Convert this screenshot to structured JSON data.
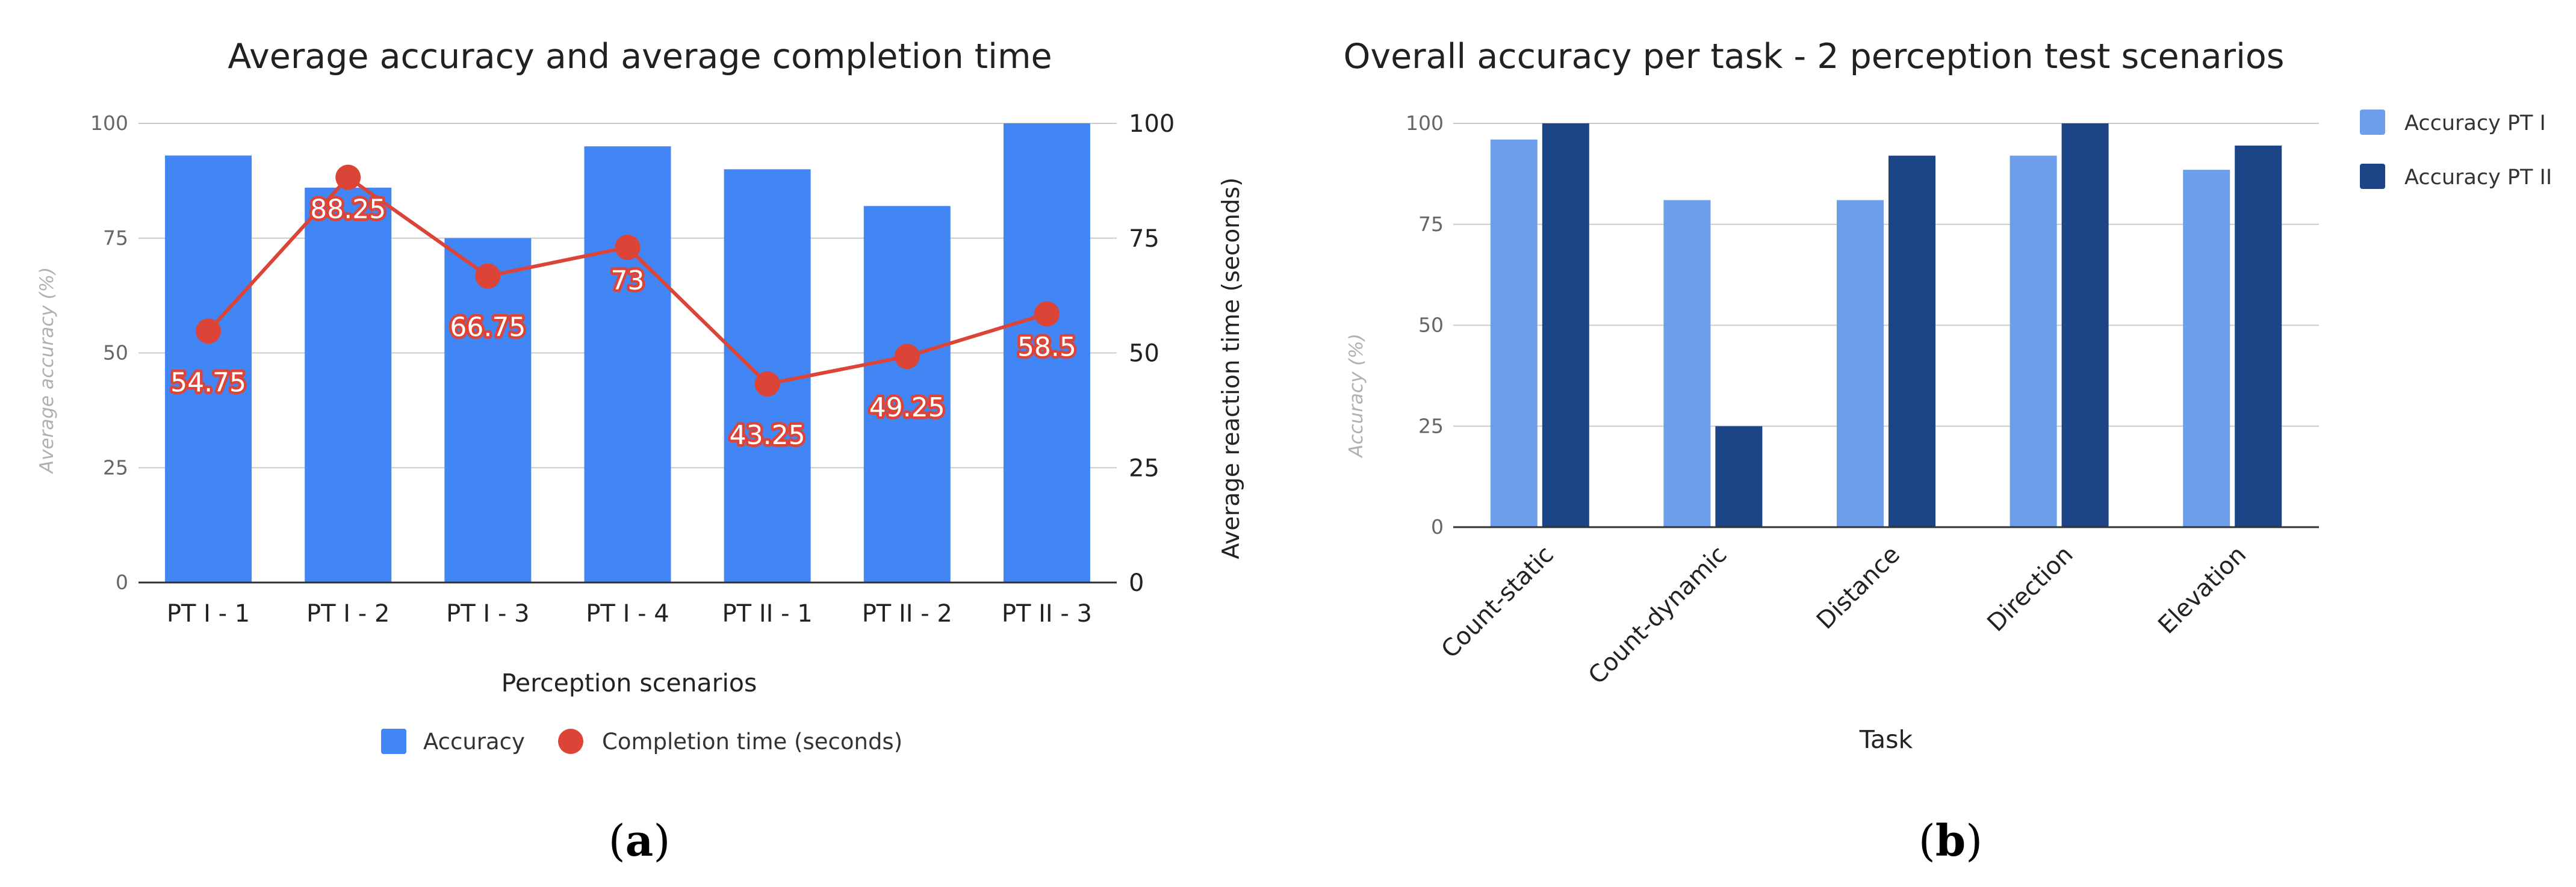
{
  "chart_data": [
    {
      "type": "bar",
      "title": "Average accuracy and average completion time",
      "xlabel": "Perception scenarios",
      "ylabel": "Average accuracy (%)",
      "y2label": "Average reaction time (seconds)",
      "ylim": [
        0,
        100
      ],
      "y2lim": [
        0,
        100
      ],
      "yticks": [
        "0",
        "25",
        "50",
        "75",
        "100"
      ],
      "y2ticks": [
        "0",
        "25",
        "50",
        "75",
        "100"
      ],
      "categories": [
        "PT I - 1",
        "PT I - 2",
        "PT I - 3",
        "PT I - 4",
        "PT II - 1",
        "PT II - 2",
        "PT II - 3"
      ],
      "series": [
        {
          "name": "Accuracy",
          "kind": "bar",
          "color": "#4285f4",
          "values": [
            93,
            86,
            75,
            95,
            90,
            82,
            100
          ]
        },
        {
          "name": "Completion time (seconds)",
          "kind": "line",
          "axis": "right",
          "color": "#db4437",
          "values": [
            54.75,
            88.25,
            66.75,
            73,
            43.25,
            49.25,
            58.5
          ],
          "labels": [
            "54.75",
            "88.25",
            "66.75",
            "73",
            "43.25",
            "49.25",
            "58.5"
          ]
        }
      ],
      "legend": "bottom",
      "caption": "(a)",
      "caption_letter": "a"
    },
    {
      "type": "bar",
      "title": "Overall accuracy per task - 2 perception test scenarios",
      "xlabel": "Task",
      "ylabel": "Accuracy (%)",
      "ylim": [
        0,
        100
      ],
      "yticks": [
        "0",
        "25",
        "50",
        "75",
        "100"
      ],
      "categories": [
        "Count-static",
        "Count-dynamic",
        "Distance",
        "Direction",
        "Elevation"
      ],
      "series": [
        {
          "name": "Accuracy PT I",
          "color": "#6d9eeb",
          "values": [
            96,
            81,
            81,
            92,
            88.5
          ]
        },
        {
          "name": "Accuracy PT II",
          "color": "#1c4587",
          "values": [
            100,
            25,
            92,
            100,
            94.5
          ]
        }
      ],
      "legend": "right",
      "caption": "(b)",
      "caption_letter": "b"
    }
  ]
}
